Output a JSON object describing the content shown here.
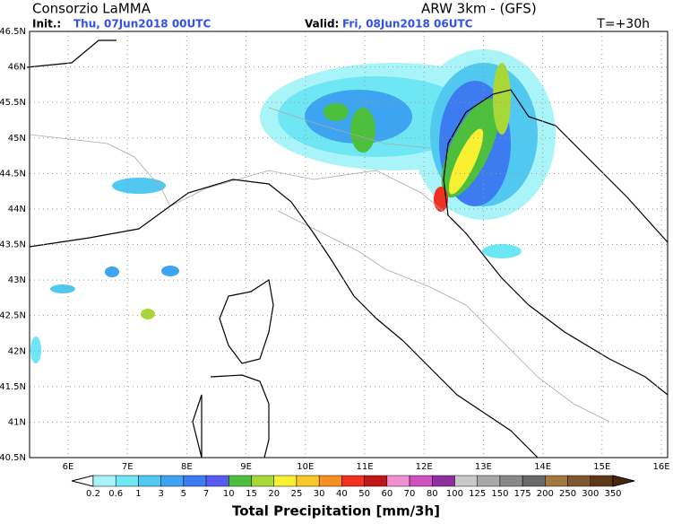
{
  "header": {
    "left_title": "Consorzio LaMMA",
    "init_label": "Init.:",
    "init_value": "Thu, 07Jun2018 00UTC",
    "right_title": "ARW 3km - (GFS)",
    "valid_label": "Valid:",
    "valid_value": "Fri, 08Jun2018 06UTC",
    "forecast": "T=+30h"
  },
  "map": {
    "lat_labels": [
      "46.5N",
      "46N",
      "45.5N",
      "45N",
      "44.5N",
      "44N",
      "43.5N",
      "43N",
      "42.5N",
      "42N",
      "41.5N",
      "41N",
      "40.5N"
    ],
    "lon_labels": [
      "6E",
      "7E",
      "8E",
      "9E",
      "10E",
      "11E",
      "12E",
      "13E",
      "14E",
      "15E",
      "16E"
    ]
  },
  "colorbar": {
    "title": "Total Precipitation [mm/3h]",
    "labels": [
      "0.2",
      "0.6",
      "1",
      "3",
      "5",
      "7",
      "10",
      "15",
      "20",
      "25",
      "30",
      "40",
      "50",
      "60",
      "70",
      "80",
      "100",
      "125",
      "150",
      "175",
      "200",
      "250",
      "300",
      "350"
    ],
    "colors": [
      "#a8f4f8",
      "#6ee6f4",
      "#50c8f0",
      "#3ca4f0",
      "#3c7cf0",
      "#5a5af0",
      "#4cbf3c",
      "#a8d838",
      "#f8f030",
      "#f8c828",
      "#f89020",
      "#f03020",
      "#c01818",
      "#f090d0",
      "#d050c0",
      "#9030a0",
      "#c8c8c8",
      "#a8a8a8",
      "#888888",
      "#686868",
      "#a07840",
      "#805830",
      "#603818"
    ],
    "under_color": "#ffffff",
    "over_color": "#4a2810"
  }
}
